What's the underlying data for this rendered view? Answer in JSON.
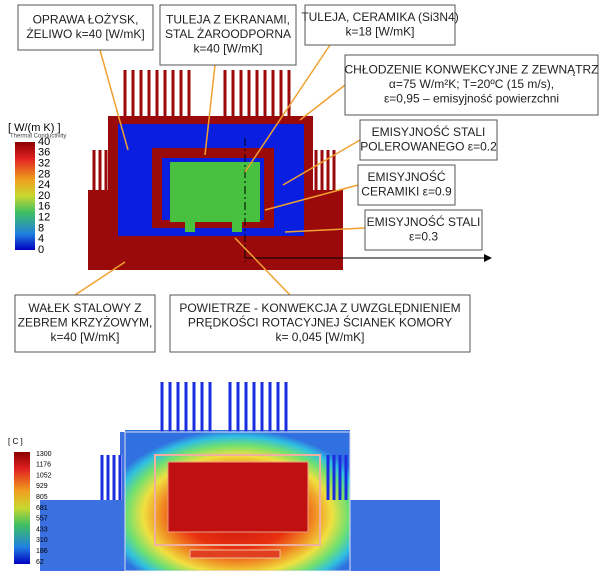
{
  "top_legend": {
    "unit": "[ W/(m K) ]",
    "title": "Thermal Conductivity",
    "ticks": [
      40,
      36,
      32,
      28,
      24,
      20,
      16,
      12,
      8,
      4,
      0
    ]
  },
  "callouts": [
    {
      "lines": [
        "OPRAWA ŁOŻYSK,",
        "ŻELIWO k=40 [W/mK]"
      ]
    },
    {
      "lines": [
        "TULEJA Z EKRANAMI,",
        "STAL ŻAROODPORNA",
        "k=40 [W/mK]"
      ]
    },
    {
      "lines": [
        "TULEJA, CERAMIKA (Si3N4)",
        "k=18 [W/mK]"
      ]
    },
    {
      "lines": [
        "CHŁODZENIE KONWEKCYJNE Z ZEWNĄTRZ",
        "α=75 W/m²K; T=20ºC (15 m/s),",
        "ε=0,95 – emisyjność powierzchni"
      ]
    },
    {
      "lines": [
        "EMISYJNOŚĆ STALI",
        "POLEROWANEGO ε=0.2"
      ]
    },
    {
      "lines": [
        "EMISYJNOŚĆ",
        "CERAMIKI ε=0.9"
      ]
    },
    {
      "lines": [
        "EMISYJNOŚĆ STALI",
        "ε=0.3"
      ]
    },
    {
      "lines": [
        "WAŁEK STALOWY Z",
        "ZEBREM KRZYŻOWYM,",
        "k=40 [W/mK]"
      ]
    },
    {
      "lines": [
        "POWIETRZE - KONWEKCJA Z UWZGLĘDNIENIEM",
        "PRĘDKOŚCI ROTACYJNEJ ŚCIANEK KOMORY",
        "k= 0,045 [W/mK]"
      ]
    }
  ],
  "bottom_legend": {
    "unit": "[ C ]",
    "ticks": [
      1300,
      1176,
      1052,
      929,
      805,
      681,
      557,
      433,
      310,
      186,
      62
    ]
  }
}
